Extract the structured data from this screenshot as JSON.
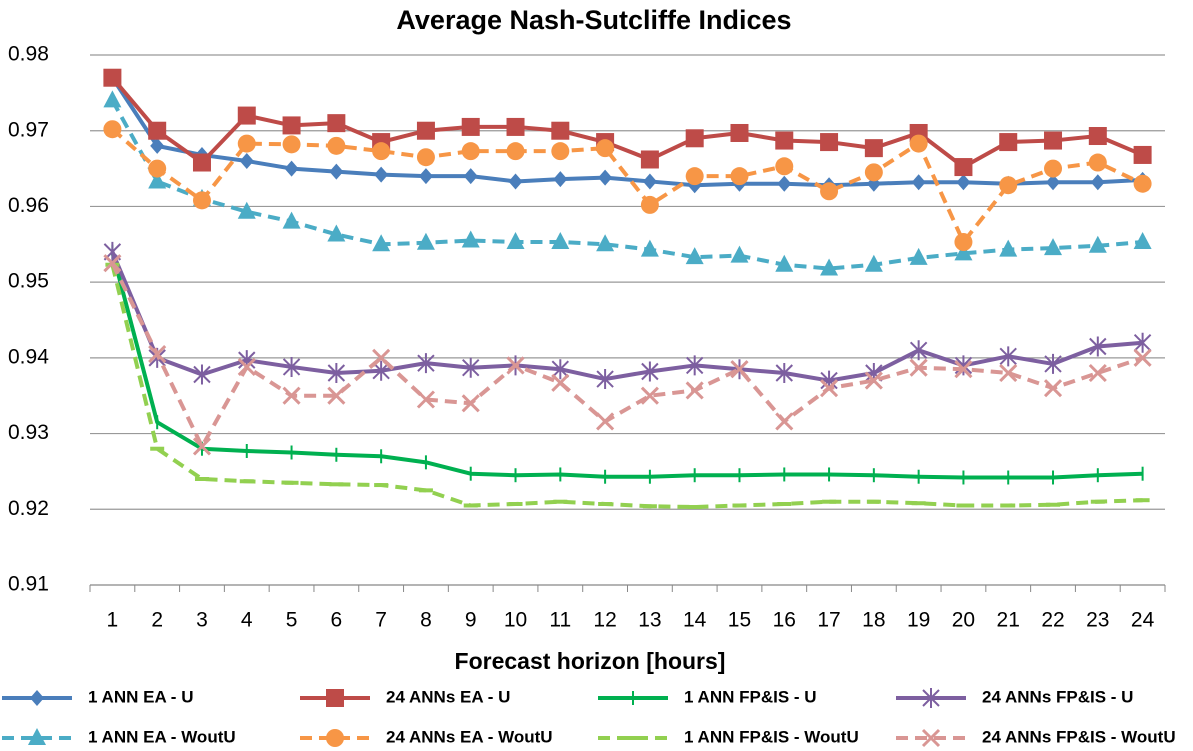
{
  "chart_data": {
    "type": "line",
    "title": "Average Nash-Sutcliffe Indices",
    "x_label": "Forecast horizon  [hours]",
    "categories": [
      "1",
      "2",
      "3",
      "4",
      "5",
      "6",
      "7",
      "8",
      "9",
      "10",
      "11",
      "12",
      "13",
      "14",
      "15",
      "16",
      "17",
      "18",
      "19",
      "20",
      "21",
      "22",
      "23",
      "24"
    ],
    "ylim": [
      0.91,
      0.98
    ],
    "yticks": [
      0.91,
      0.92,
      0.93,
      0.94,
      0.95,
      0.96,
      0.97,
      0.98
    ],
    "grid": true,
    "legend": "bottom",
    "series": [
      {
        "name": "1 ANN EA - U",
        "color": "#4a7ebb",
        "marker": "diamond",
        "dashed": false,
        "values": [
          0.977,
          0.968,
          0.9668,
          0.966,
          0.965,
          0.9646,
          0.9642,
          0.964,
          0.964,
          0.9633,
          0.9636,
          0.9638,
          0.9633,
          0.9628,
          0.963,
          0.963,
          0.9628,
          0.963,
          0.9632,
          0.9632,
          0.963,
          0.9632,
          0.9632,
          0.9635
        ]
      },
      {
        "name": "24 ANNs EA - U",
        "color": "#be4b48",
        "marker": "square",
        "dashed": false,
        "values": [
          0.977,
          0.97,
          0.9658,
          0.972,
          0.9707,
          0.971,
          0.9685,
          0.97,
          0.9705,
          0.9705,
          0.97,
          0.9685,
          0.9662,
          0.969,
          0.9697,
          0.9687,
          0.9685,
          0.9677,
          0.9697,
          0.9652,
          0.9685,
          0.9687,
          0.9693,
          0.9668
        ]
      },
      {
        "name": "1 ANN FP&IS - U",
        "color": "#00b050",
        "marker": "plus",
        "dashed": false,
        "values": [
          0.954,
          0.9315,
          0.928,
          0.9277,
          0.9275,
          0.9272,
          0.927,
          0.9262,
          0.9247,
          0.9245,
          0.9246,
          0.9243,
          0.9243,
          0.9245,
          0.9245,
          0.9246,
          0.9246,
          0.9245,
          0.9243,
          0.9242,
          0.9242,
          0.9242,
          0.9245,
          0.9247
        ]
      },
      {
        "name": "24 ANNs FP&IS - U",
        "color": "#7d5fa0",
        "marker": "star",
        "dashed": false,
        "values": [
          0.954,
          0.94,
          0.9378,
          0.9397,
          0.9388,
          0.938,
          0.9383,
          0.9393,
          0.9387,
          0.939,
          0.9385,
          0.9372,
          0.9382,
          0.939,
          0.9385,
          0.938,
          0.937,
          0.938,
          0.941,
          0.939,
          0.9402,
          0.9392,
          0.9415,
          0.942
        ]
      },
      {
        "name": "1 ANN EA - WoutU",
        "color": "#4bacc6",
        "marker": "triangle",
        "dashed": true,
        "values": [
          0.974,
          0.9633,
          0.961,
          0.9593,
          0.958,
          0.9563,
          0.955,
          0.9552,
          0.9555,
          0.9553,
          0.9553,
          0.955,
          0.9543,
          0.9533,
          0.9535,
          0.9523,
          0.9518,
          0.9523,
          0.9532,
          0.9538,
          0.9543,
          0.9545,
          0.9548,
          0.9553
        ]
      },
      {
        "name": "24 ANNs EA - WoutU",
        "color": "#f79646",
        "marker": "circle",
        "dashed": true,
        "values": [
          0.9702,
          0.965,
          0.9608,
          0.9683,
          0.9682,
          0.968,
          0.9673,
          0.9665,
          0.9673,
          0.9673,
          0.9673,
          0.9677,
          0.9602,
          0.964,
          0.964,
          0.9653,
          0.962,
          0.9645,
          0.9683,
          0.9553,
          0.9628,
          0.965,
          0.9658,
          0.963
        ]
      },
      {
        "name": "1 ANN FP&IS - WoutU",
        "color": "#92d050",
        "marker": "dash",
        "dashed": true,
        "values": [
          0.9523,
          0.928,
          0.924,
          0.9237,
          0.9235,
          0.9233,
          0.9232,
          0.9225,
          0.9205,
          0.9207,
          0.921,
          0.9207,
          0.9204,
          0.9203,
          0.9205,
          0.9207,
          0.921,
          0.921,
          0.9208,
          0.9205,
          0.9205,
          0.9206,
          0.921,
          0.9212
        ]
      },
      {
        "name": "24 ANNs FP&IS - WoutU",
        "color": "#d99694",
        "marker": "x",
        "dashed": true,
        "values": [
          0.9525,
          0.9405,
          0.9283,
          0.9388,
          0.935,
          0.935,
          0.94,
          0.9345,
          0.934,
          0.939,
          0.9367,
          0.9316,
          0.935,
          0.9357,
          0.9385,
          0.9316,
          0.936,
          0.937,
          0.9387,
          0.9385,
          0.938,
          0.936,
          0.938,
          0.94
        ]
      }
    ]
  }
}
